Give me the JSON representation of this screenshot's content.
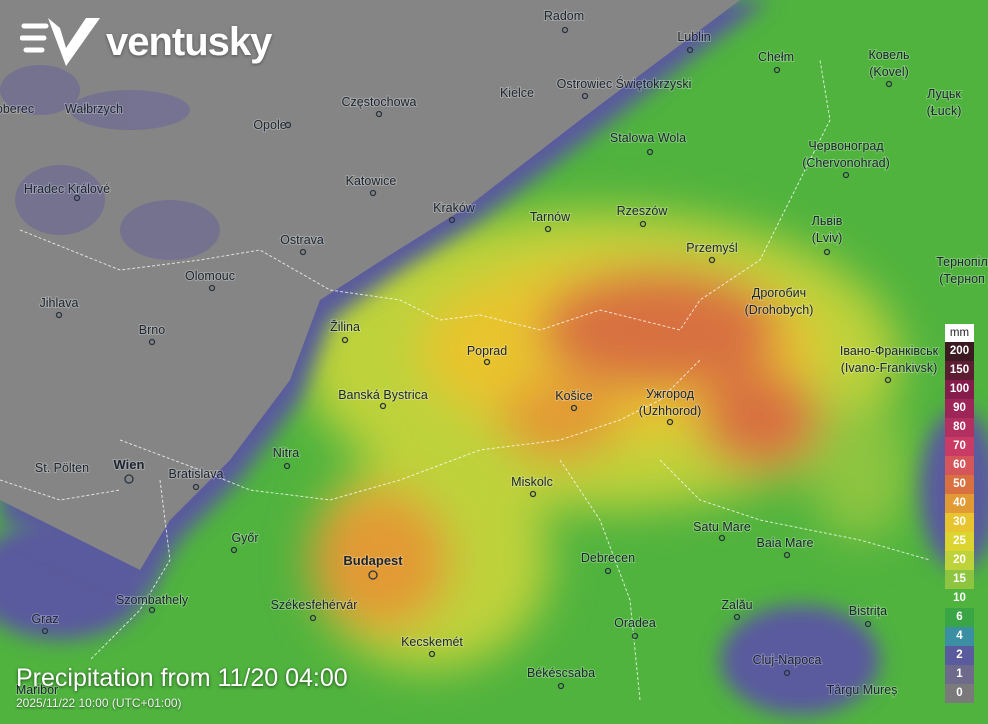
{
  "logo": "ventusky",
  "title": "Precipitation from 11/20 04:00",
  "timestamp": "2025/11/22 10:00 (UTC+01:00)",
  "legend": {
    "unit": "mm",
    "items": [
      {
        "label": "200",
        "color": "#3b1a22"
      },
      {
        "label": "150",
        "color": "#5c1d33"
      },
      {
        "label": "100",
        "color": "#861c4b"
      },
      {
        "label": "90",
        "color": "#9e2557"
      },
      {
        "label": "80",
        "color": "#b32f5f"
      },
      {
        "label": "70",
        "color": "#c93a64"
      },
      {
        "label": "60",
        "color": "#d4565b"
      },
      {
        "label": "50",
        "color": "#d8713f"
      },
      {
        "label": "40",
        "color": "#e29a35"
      },
      {
        "label": "30",
        "color": "#e8c42e"
      },
      {
        "label": "25",
        "color": "#dcd52f"
      },
      {
        "label": "20",
        "color": "#bed23a"
      },
      {
        "label": "15",
        "color": "#8dc540"
      },
      {
        "label": "10",
        "color": "#4fb33e"
      },
      {
        "label": "6",
        "color": "#3aa545"
      },
      {
        "label": "4",
        "color": "#3a8fa3"
      },
      {
        "label": "2",
        "color": "#5a5a9e"
      },
      {
        "label": "1",
        "color": "#6e6a8c"
      },
      {
        "label": "0",
        "color": "#7a7a7a"
      }
    ]
  },
  "places": [
    {
      "name": "Radom"
    },
    {
      "name": "Lublin"
    },
    {
      "name": "Chełm"
    },
    {
      "name": "Ковель",
      "alt": "(Kovel)"
    },
    {
      "name": "Луцьк",
      "alt": "(Łuck)"
    },
    {
      "name": "oberec"
    },
    {
      "name": "Wałbrzych"
    },
    {
      "name": "Częstochowa"
    },
    {
      "name": "Ostrowiec Świętokrzyski"
    },
    {
      "name": "Kielce"
    },
    {
      "name": "Opole"
    },
    {
      "name": "Stalowa Wola"
    },
    {
      "name": "Червоноград",
      "alt": "(Chervonohrad)"
    },
    {
      "name": "Hradec Králové"
    },
    {
      "name": "Katowice"
    },
    {
      "name": "Kraków"
    },
    {
      "name": "Tarnów"
    },
    {
      "name": "Rzeszów"
    },
    {
      "name": "Львів",
      "alt": "(Lviv)"
    },
    {
      "name": "Ostrava"
    },
    {
      "name": "Przemyśl"
    },
    {
      "name": "Тернопіл",
      "alt": "(Терноп"
    },
    {
      "name": "Olomouc"
    },
    {
      "name": "Jihlava"
    },
    {
      "name": "Дрогобич",
      "alt": "(Drohobych)"
    },
    {
      "name": "Žilina"
    },
    {
      "name": "Brno"
    },
    {
      "name": "Poprad"
    },
    {
      "name": "Івано-Франківськ",
      "alt": "(Ivano-Frankivsk)"
    },
    {
      "name": "Banská Bystrica"
    },
    {
      "name": "Košice"
    },
    {
      "name": "Ужгород",
      "alt": "(Uzhhorod)"
    },
    {
      "name": "St. Pölten"
    },
    {
      "name": "Wien",
      "capital": true
    },
    {
      "name": "Bratislava"
    },
    {
      "name": "Nitra"
    },
    {
      "name": "Miskolc"
    },
    {
      "name": "Győr"
    },
    {
      "name": "Satu Mare"
    },
    {
      "name": "Baia Mare"
    },
    {
      "name": "Budapest",
      "capital": true
    },
    {
      "name": "Debrecen"
    },
    {
      "name": "Szombathely"
    },
    {
      "name": "Székesfehérvár"
    },
    {
      "name": "Graz"
    },
    {
      "name": "Oradea"
    },
    {
      "name": "Zalău"
    },
    {
      "name": "Bistrița"
    },
    {
      "name": "Kecskemét"
    },
    {
      "name": "Cluj-Napoca"
    },
    {
      "name": "Békéscsaba"
    },
    {
      "name": "Târgu Mureș"
    },
    {
      "name": "Maribor"
    }
  ]
}
